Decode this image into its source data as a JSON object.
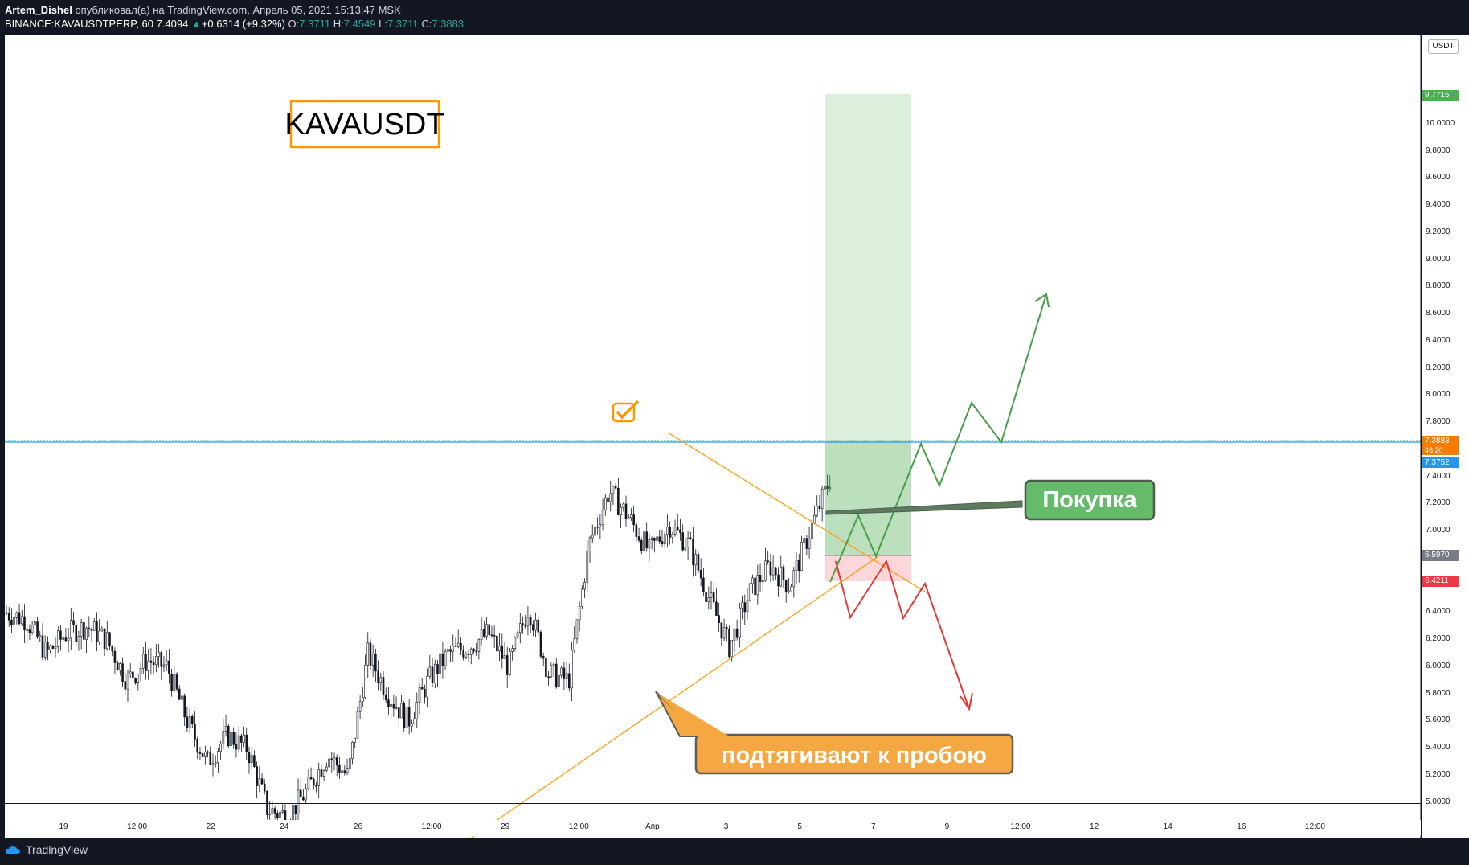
{
  "header": {
    "author": "Artem_Dishel",
    "published_text": "опубликовал(а) на TradingView.com, Апрель 05, 2021 15:13:47 MSK",
    "symbol": "BINANCE:KAVAUSDTPERP, 60",
    "last": "7.4094",
    "change": "+0.6314 (+9.32%)",
    "o_label": "O:",
    "o_value": "7.3711",
    "h_label": "H:",
    "h_value": "7.4549",
    "l_label": "L:",
    "l_value": "7.3711",
    "c_label": "C:",
    "c_value": "7.3883"
  },
  "footer": {
    "brand": "TradingView"
  },
  "chart": {
    "currency_button": "USDT",
    "title_box": "KAVAUSDT",
    "buy_label": "Покупка",
    "breakout_label": "подтягивают к пробою",
    "price_tags": {
      "take_profit": "9.7715",
      "last_price": "7.3883",
      "countdown": "46:20",
      "blue_line": "7.3752",
      "entry": "6.5970",
      "stop": "6.4211"
    },
    "colors": {
      "take_profit": "#4caf50",
      "last_price": "#f57c00",
      "blue_line": "#2196f3",
      "entry": "#787b86",
      "stop": "#f23645",
      "triangle": "#ff9800",
      "up_path": "#43a047",
      "down_path": "#e53935"
    }
  },
  "chart_data": {
    "type": "line",
    "title": "KAVAUSDT",
    "xlabel": "",
    "ylabel": "",
    "x_ticks": [
      "19",
      "12:00",
      "22",
      "24",
      "26",
      "12:00",
      "29",
      "12:00",
      "Апр",
      "3",
      "5",
      "7",
      "9",
      "12:00",
      "12",
      "14",
      "16",
      "12:00"
    ],
    "y_ticks": [
      "10.0000",
      "9.8000",
      "9.6000",
      "9.4000",
      "9.2000",
      "9.0000",
      "8.8000",
      "8.6000",
      "8.4000",
      "8.2000",
      "8.0000",
      "7.8000",
      "7.6000",
      "7.4000",
      "7.2000",
      "7.0000",
      "6.8000",
      "6.6000",
      "6.4000",
      "6.2000",
      "6.0000",
      "5.8000",
      "5.6000",
      "5.4000",
      "5.2000",
      "5.0000"
    ],
    "ylim": [
      4.85,
      10.2
    ],
    "grid": false,
    "series": [
      {
        "name": "",
        "points": [
          [
            "17-й",
            6.4
          ],
          [
            "18",
            6.35
          ],
          [
            "19",
            6.1
          ],
          [
            "19 12:00",
            6.25
          ],
          [
            "20",
            6.3
          ],
          [
            "21",
            6.2
          ],
          [
            "22",
            5.9
          ],
          [
            "22 12:00",
            6.05
          ],
          [
            "23",
            6.0
          ],
          [
            "23 12:00",
            5.6
          ],
          [
            "24",
            5.3
          ],
          [
            "24 12:00",
            5.5
          ],
          [
            "25",
            5.4
          ],
          [
            "25 12:00",
            4.95
          ],
          [
            "26",
            4.9
          ],
          [
            "26 12:00",
            5.1
          ],
          [
            "27",
            5.35
          ],
          [
            "27 12:00",
            5.2
          ],
          [
            "28",
            6.1
          ],
          [
            "28 12:00",
            5.8
          ],
          [
            "29",
            5.6
          ],
          [
            "29 12:00",
            5.9
          ],
          [
            "30",
            6.1
          ],
          [
            "30 12:00",
            6.15
          ],
          [
            "31",
            6.25
          ],
          [
            "31 12:00",
            6.0
          ],
          [
            "1 апр",
            6.45
          ],
          [
            "1 апр 12:00",
            5.95
          ],
          [
            "2",
            5.9
          ],
          [
            "2 06:00",
            6.9
          ],
          [
            "2 12:00",
            7.3
          ],
          [
            "2 18:00",
            7.1
          ],
          [
            "3",
            6.85
          ],
          [
            "3 12:00",
            7.05
          ],
          [
            "4",
            6.9
          ],
          [
            "4 12:00",
            6.5
          ],
          [
            "4 18:00",
            6.15
          ],
          [
            "5",
            6.55
          ],
          [
            "5 06:00",
            6.75
          ],
          [
            "5 09:00",
            6.6
          ],
          [
            "5 12:00",
            7.0
          ],
          [
            "5 15:00",
            7.39
          ]
        ]
      }
    ],
    "annotations": [
      {
        "type": "long_position",
        "entry": 6.597,
        "target": 9.7715,
        "stop": 6.4211
      },
      {
        "type": "horizontal_line",
        "value": 7.3752
      },
      {
        "type": "triangle",
        "upper_from": 7.45,
        "lower_from": 4.85,
        "apex": 6.35
      },
      {
        "type": "path_up",
        "values": [
          6.42,
          6.9,
          6.6,
          7.4,
          7.1,
          7.65,
          7.35,
          8.4
        ]
      },
      {
        "type": "path_down",
        "values": [
          6.6,
          6.17,
          6.5,
          6.18,
          6.35,
          5.55
        ]
      }
    ]
  }
}
